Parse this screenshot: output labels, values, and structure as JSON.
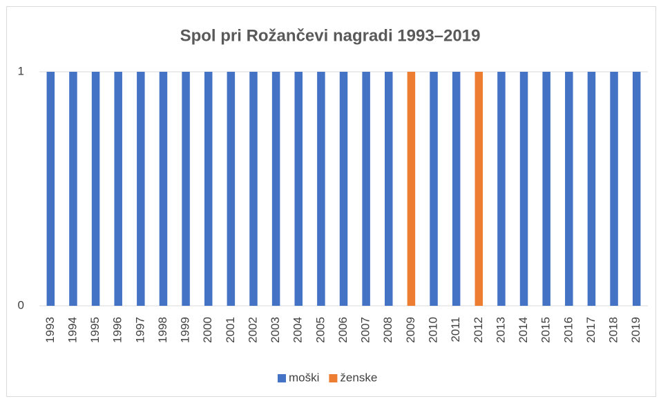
{
  "chart_data": {
    "type": "bar",
    "stacked": true,
    "title": "Spol pri Rožančevi nagradi 1993–2019",
    "categories": [
      "1993",
      "1994",
      "1995",
      "1996",
      "1997",
      "1998",
      "1999",
      "2000",
      "2001",
      "2002",
      "2003",
      "2004",
      "2005",
      "2006",
      "2007",
      "2008",
      "2009",
      "2010",
      "2011",
      "2012",
      "2013",
      "2014",
      "2015",
      "2016",
      "2017",
      "2018",
      "2019"
    ],
    "series": [
      {
        "name": "moški",
        "color": "#4472c4",
        "values": [
          1,
          1,
          1,
          1,
          1,
          1,
          1,
          1,
          1,
          1,
          1,
          1,
          1,
          1,
          1,
          1,
          0,
          1,
          1,
          0,
          1,
          1,
          1,
          1,
          1,
          1,
          1
        ]
      },
      {
        "name": "ženske",
        "color": "#ed7d31",
        "values": [
          0,
          0,
          0,
          0,
          0,
          0,
          0,
          0,
          0,
          0,
          0,
          0,
          0,
          0,
          0,
          0,
          1,
          0,
          0,
          1,
          0,
          0,
          0,
          0,
          0,
          0,
          0
        ]
      }
    ],
    "ylim": [
      0,
      1
    ],
    "yticks": [
      0,
      1
    ],
    "grid": true,
    "legend": "bottom"
  }
}
